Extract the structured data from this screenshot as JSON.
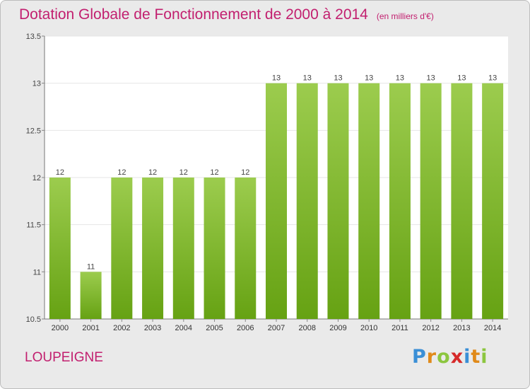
{
  "header": {
    "title": "Dotation Globale de Fonctionnement de 2000 à 2014",
    "unit": "(en milliers d'€)"
  },
  "footer": {
    "commune": "LOUPEIGNE",
    "brand": "Proxiti"
  },
  "colors": {
    "title": "#c21f6f",
    "bar_top": "#9ccc4e",
    "bar_bottom": "#66a213",
    "background": "#eaeaea",
    "plot_background": "#ffffff",
    "grid": "#e6e6e6"
  },
  "chart_data": {
    "type": "bar",
    "title": "Dotation Globale de Fonctionnement de 2000 à 2014",
    "subtitle": "(en milliers d'€)",
    "categories": [
      "2000",
      "2001",
      "2002",
      "2003",
      "2004",
      "2005",
      "2006",
      "2007",
      "2008",
      "2009",
      "2010",
      "2011",
      "2012",
      "2013",
      "2014"
    ],
    "values": [
      12,
      11,
      12,
      12,
      12,
      12,
      12,
      13,
      13,
      13,
      13,
      13,
      13,
      13,
      13
    ],
    "data_labels": [
      "12",
      "11",
      "12",
      "12",
      "12",
      "12",
      "12",
      "13",
      "13",
      "13",
      "13",
      "13",
      "13",
      "13",
      "13"
    ],
    "ylim": [
      10.5,
      13.5
    ],
    "yticks": [
      10.5,
      11,
      11.5,
      12,
      12.5,
      13,
      13.5
    ],
    "ytick_labels": [
      "10.5",
      "11",
      "11.5",
      "12",
      "12.5",
      "13",
      "13.5"
    ],
    "xlabel": "",
    "ylabel": "",
    "grid": true
  }
}
